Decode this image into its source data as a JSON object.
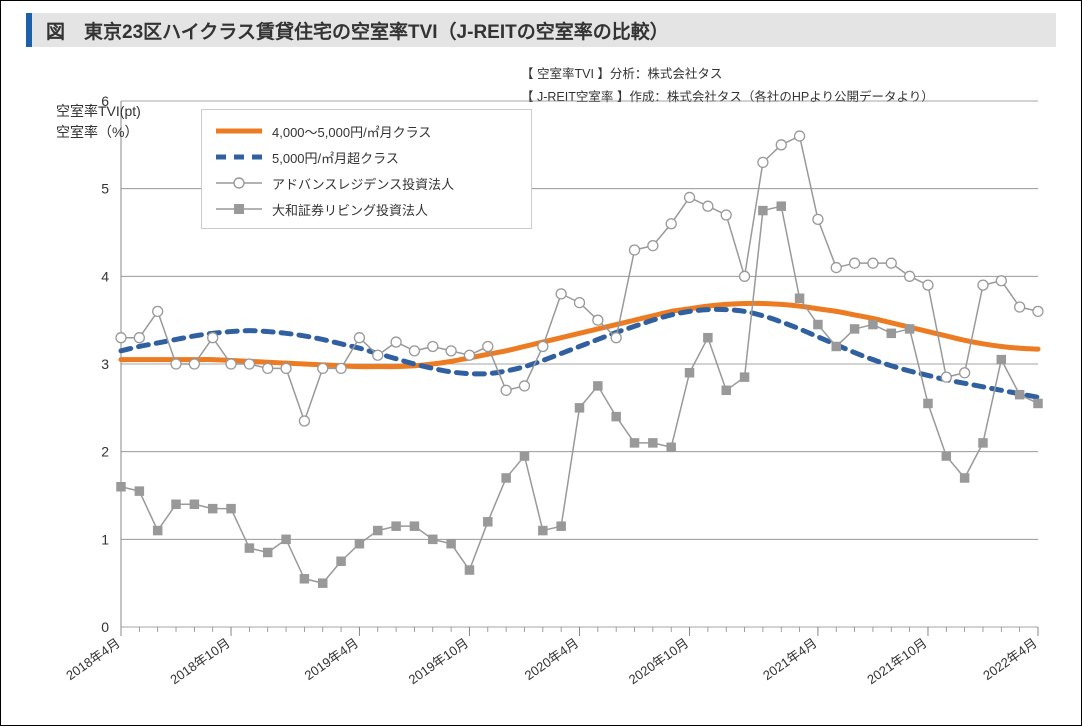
{
  "title": "図　東京23区ハイクラス賃貸住宅の空室率TVI（J-REITの空室率の比較）",
  "source_line1": "【 空室率TVI 】分析：株式会社タス",
  "source_line2": "【 J-REIT空室率 】作成：株式会社タス（各社のHPより公開データより）",
  "y_axis_title_line1": "空室率TVI(pt)",
  "y_axis_title_line2": "空室率（%）",
  "chart": {
    "type": "line",
    "background_color": "#ffffff",
    "grid_color": "#888888",
    "axis_color": "#888888",
    "tick_font_size": 14,
    "tick_color": "#333333",
    "ylim": [
      0,
      6
    ],
    "ytick_step": 1,
    "x_labels": [
      "2018年4月",
      "2018年10月",
      "2019年4月",
      "2019年10月",
      "2020年4月",
      "2020年10月",
      "2021年4月",
      "2021年10月",
      "2022年4月"
    ],
    "x_label_rotation_deg": -35,
    "n_points": 51,
    "series": [
      {
        "id": "class_4000_5000",
        "label": "4,000～5,000円/㎡月クラス",
        "type": "line",
        "color": "#ec7b22",
        "line_width": 5,
        "dash": "none",
        "marker": "none",
        "values": [
          3.05,
          3.05,
          3.05,
          3.05,
          3.05,
          3.05,
          3.04,
          3.03,
          3.02,
          3.01,
          3.0,
          2.99,
          2.98,
          2.97,
          2.97,
          2.97,
          2.98,
          3.0,
          3.03,
          3.07,
          3.11,
          3.15,
          3.2,
          3.25,
          3.3,
          3.35,
          3.4,
          3.45,
          3.5,
          3.55,
          3.6,
          3.63,
          3.66,
          3.68,
          3.69,
          3.69,
          3.68,
          3.66,
          3.63,
          3.6,
          3.56,
          3.52,
          3.47,
          3.42,
          3.37,
          3.32,
          3.27,
          3.23,
          3.2,
          3.18,
          3.17
        ]
      },
      {
        "id": "class_5000_over",
        "label": "5,000円/㎡月超クラス",
        "type": "line",
        "color": "#3060a0",
        "line_width": 5,
        "dash": "10,8",
        "marker": "none",
        "values": [
          3.15,
          3.2,
          3.24,
          3.28,
          3.32,
          3.35,
          3.37,
          3.38,
          3.37,
          3.35,
          3.32,
          3.28,
          3.23,
          3.18,
          3.12,
          3.06,
          3.0,
          2.95,
          2.91,
          2.89,
          2.89,
          2.92,
          2.97,
          3.04,
          3.12,
          3.2,
          3.28,
          3.36,
          3.43,
          3.5,
          3.56,
          3.6,
          3.62,
          3.62,
          3.6,
          3.55,
          3.48,
          3.4,
          3.31,
          3.22,
          3.13,
          3.05,
          2.98,
          2.92,
          2.87,
          2.82,
          2.78,
          2.74,
          2.7,
          2.66,
          2.62
        ]
      },
      {
        "id": "advance_residence",
        "label": "アドバンスレジデンス投資法人",
        "type": "line",
        "color": "#999999",
        "line_width": 1.5,
        "dash": "none",
        "marker": "circle",
        "marker_fill": "#ffffff",
        "marker_size": 5,
        "values": [
          3.3,
          3.3,
          3.6,
          3.0,
          3.0,
          3.3,
          3.0,
          3.0,
          2.95,
          2.95,
          2.35,
          2.95,
          2.95,
          3.3,
          3.1,
          3.25,
          3.15,
          3.2,
          3.15,
          3.1,
          3.2,
          2.7,
          2.75,
          3.2,
          3.8,
          3.7,
          3.5,
          3.3,
          4.3,
          4.35,
          4.6,
          4.9,
          4.8,
          4.7,
          4.0,
          5.3,
          5.5,
          5.6,
          4.65,
          4.1,
          4.15,
          4.15,
          4.15,
          4.0,
          3.9,
          2.85,
          2.9,
          3.9,
          3.95,
          3.65,
          3.6
        ]
      },
      {
        "id": "daiwa_living",
        "label": "大和証券リビング投資法人",
        "type": "line",
        "color": "#999999",
        "line_width": 1.5,
        "dash": "none",
        "marker": "square",
        "marker_fill": "#999999",
        "marker_size": 5,
        "values": [
          1.6,
          1.55,
          1.1,
          1.4,
          1.4,
          1.35,
          1.35,
          0.9,
          0.85,
          1.0,
          0.55,
          0.5,
          0.75,
          0.95,
          1.1,
          1.15,
          1.15,
          1.0,
          0.95,
          0.65,
          1.2,
          1.7,
          1.95,
          1.1,
          1.15,
          2.5,
          2.75,
          2.4,
          2.1,
          2.1,
          2.05,
          2.9,
          3.3,
          2.7,
          2.85,
          4.75,
          4.8,
          3.75,
          3.45,
          3.2,
          3.4,
          3.45,
          3.35,
          3.4,
          2.55,
          1.95,
          1.7,
          2.1,
          3.05,
          2.65,
          2.55
        ]
      }
    ]
  },
  "legend": {
    "items": [
      {
        "ref": "class_4000_5000"
      },
      {
        "ref": "class_5000_over"
      },
      {
        "ref": "advance_residence"
      },
      {
        "ref": "daiwa_living"
      }
    ]
  }
}
